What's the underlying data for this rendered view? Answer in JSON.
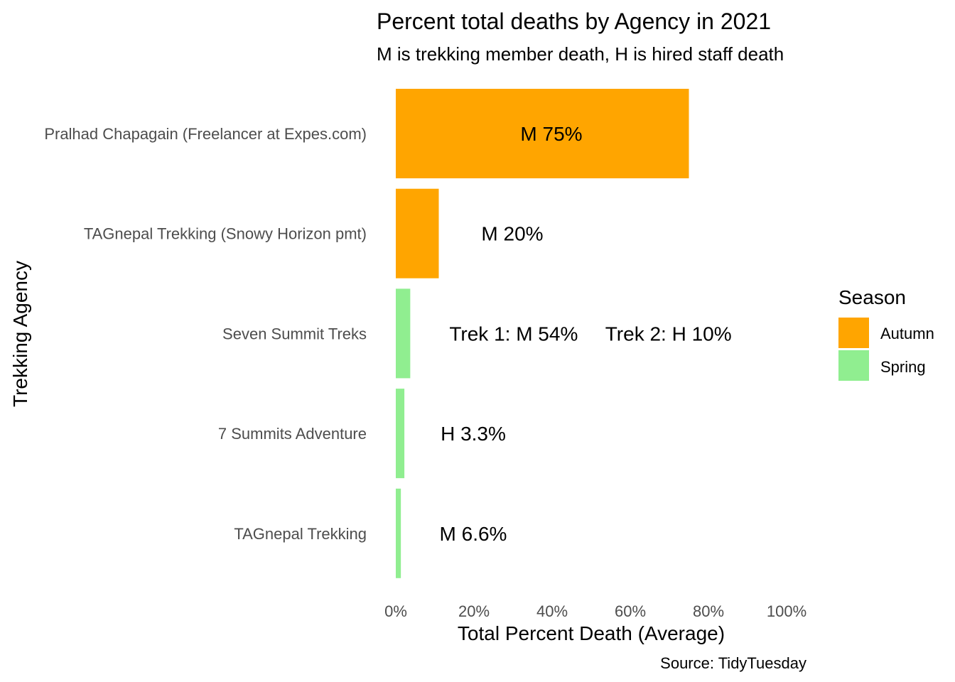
{
  "chart_data": {
    "type": "bar",
    "orientation": "horizontal",
    "title": "Percent total deaths by Agency in 2021",
    "subtitle": "M is trekking member death, H is hired staff death",
    "xlabel": "Total Percent Death (Average)",
    "ylabel": "Trekking Agency",
    "caption": "Source: TidyTuesday",
    "xlim": [
      0,
      100
    ],
    "x_ticks": [
      "0%",
      "20%",
      "40%",
      "60%",
      "80%",
      "100%"
    ],
    "grid": false,
    "categories": [
      "Pralhad Chapagain (Freelancer at Expes.com)",
      "TAGnepal Trekking (Snowy Horizon pmt)",
      "Seven Summit Treks",
      "7 Summits Adventure",
      "TAGnepal Trekking"
    ],
    "values": [
      75,
      11,
      3.7,
      2.2,
      1.3
    ],
    "seasons": [
      "Autumn",
      "Autumn",
      "Spring",
      "Spring",
      "Spring"
    ],
    "labels": [
      "M 75%",
      "M 20%",
      "Trek 1: M 54%     Trek 2: H 10%",
      "H 3.3%",
      "M 6.6%"
    ],
    "legend": {
      "title": "Season",
      "position": "right",
      "items": [
        {
          "label": "Autumn",
          "color": "#FFA500"
        },
        {
          "label": "Spring",
          "color": "#90EE90"
        }
      ]
    }
  }
}
